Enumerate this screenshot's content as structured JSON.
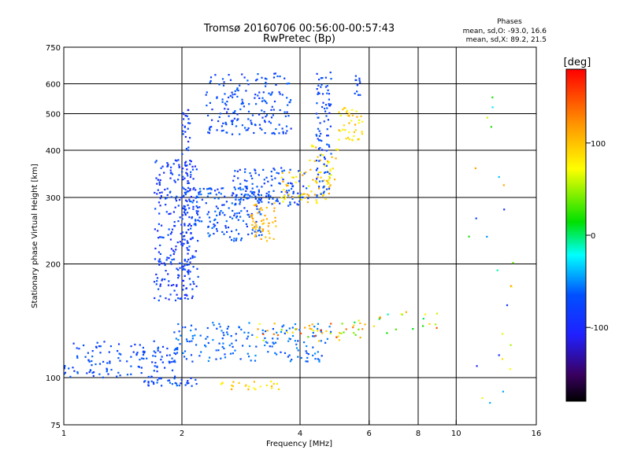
{
  "chart_data": {
    "type": "scatter",
    "title": "Tromsø 20160706 00:56:00-00:57:43",
    "subtitle": "RwPretec (Bp)",
    "xlabel": "Frequency [MHz]",
    "ylabel": "Stationary phase Virtual Height [km]",
    "x_scale": "log",
    "y_scale": "log",
    "xlim": [
      1,
      16
    ],
    "ylim": [
      75,
      750
    ],
    "x_ticks": [
      1,
      2,
      4,
      6,
      8,
      10,
      16
    ],
    "y_ticks": [
      75,
      100,
      200,
      300,
      400,
      500,
      600,
      750
    ],
    "grid": true,
    "colorbar": {
      "label": "[deg]",
      "ticks": [
        100,
        0,
        -100
      ],
      "range": [
        -180,
        180
      ]
    },
    "stats": {
      "heading": "Phases",
      "line_O": "mean, sd,O: -93.0, 16.6",
      "line_X": "mean, sd,X:  89.2, 21.5"
    },
    "clusters": [
      {
        "x": [
          1.0,
          1.95
        ],
        "y": [
          100,
          125
        ],
        "phase": [
          -120,
          -90
        ],
        "n": 130
      },
      {
        "x": [
          1.9,
          4.8
        ],
        "y": [
          110,
          140
        ],
        "phase": [
          -110,
          -70
        ],
        "n": 170
      },
      {
        "x": [
          3.0,
          5.8
        ],
        "y": [
          125,
          140
        ],
        "phase": [
          20,
          160
        ],
        "n": 45
      },
      {
        "x": [
          5.5,
          9.2
        ],
        "y": [
          130,
          150
        ],
        "phase": [
          -20,
          150
        ],
        "n": 22
      },
      {
        "x": [
          1.6,
          2.2
        ],
        "y": [
          95,
          100
        ],
        "phase": [
          -120,
          -90
        ],
        "n": 35
      },
      {
        "x": [
          2.5,
          3.6
        ],
        "y": [
          93,
          98
        ],
        "phase": [
          70,
          110
        ],
        "n": 25
      },
      {
        "x": [
          1.7,
          2.2
        ],
        "y": [
          160,
          380
        ],
        "phase": [
          -130,
          -95
        ],
        "n": 260
      },
      {
        "x": [
          2.0,
          2.1
        ],
        "y": [
          180,
          520
        ],
        "phase": [
          -130,
          -100
        ],
        "n": 80
      },
      {
        "x": [
          2.1,
          3.2
        ],
        "y": [
          230,
          320
        ],
        "phase": [
          -120,
          -80
        ],
        "n": 180
      },
      {
        "x": [
          2.7,
          4.2
        ],
        "y": [
          285,
          360
        ],
        "phase": [
          -120,
          -90
        ],
        "n": 110
      },
      {
        "x": [
          3.0,
          3.5
        ],
        "y": [
          230,
          290
        ],
        "phase": [
          90,
          115
        ],
        "n": 50
      },
      {
        "x": [
          3.5,
          4.8
        ],
        "y": [
          290,
          350
        ],
        "phase": [
          60,
          115
        ],
        "n": 60
      },
      {
        "x": [
          4.2,
          5.0
        ],
        "y": [
          330,
          420
        ],
        "phase": [
          60,
          110
        ],
        "n": 30
      },
      {
        "x": [
          2.3,
          3.8
        ],
        "y": [
          440,
          640
        ],
        "phase": [
          -120,
          -90
        ],
        "n": 180
      },
      {
        "x": [
          4.4,
          4.8
        ],
        "y": [
          300,
          650
        ],
        "phase": [
          -120,
          -90
        ],
        "n": 90
      },
      {
        "x": [
          5.0,
          5.8
        ],
        "y": [
          420,
          520
        ],
        "phase": [
          60,
          110
        ],
        "n": 40
      },
      {
        "x": [
          5.5,
          5.7
        ],
        "y": [
          560,
          650
        ],
        "phase": [
          -120,
          -100
        ],
        "n": 12
      },
      {
        "x": [
          10.5,
          14.0
        ],
        "y": [
          80,
          640
        ],
        "phase": [
          -140,
          150
        ],
        "n": 25
      }
    ]
  }
}
